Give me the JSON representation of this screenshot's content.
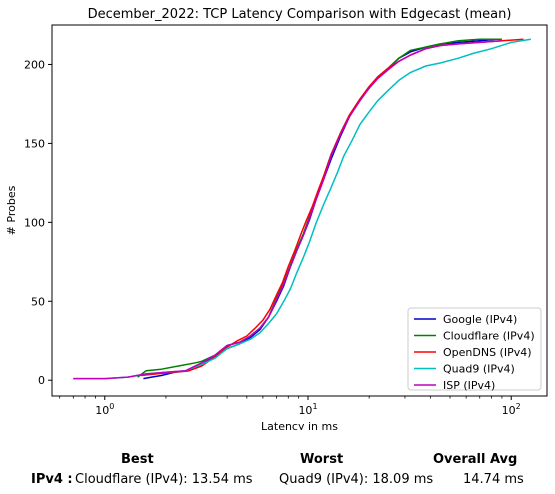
{
  "chart_data": {
    "type": "line",
    "title": "December_2022: TCP Latency Comparison with Edgecast (mean)",
    "xlabel": "Latency in ms",
    "ylabel": "# Probes",
    "x_scale": "log",
    "xlim": [
      0.55,
      150
    ],
    "ylim": [
      -10,
      225
    ],
    "x_ticks": [
      {
        "value": 1,
        "base": "10",
        "exp": "0"
      },
      {
        "value": 10,
        "base": "10",
        "exp": "1"
      },
      {
        "value": 100,
        "base": "10",
        "exp": "2"
      }
    ],
    "y_ticks": [
      0,
      50,
      100,
      150,
      200
    ],
    "legend_position": "lower right",
    "series": [
      {
        "name": "Google (IPv4)",
        "color": "#0000cc",
        "points": [
          [
            1.55,
            1
          ],
          [
            1.7,
            2
          ],
          [
            1.9,
            3
          ],
          [
            2.2,
            5
          ],
          [
            2.6,
            6
          ],
          [
            3.0,
            10
          ],
          [
            3.5,
            15
          ],
          [
            4.0,
            20
          ],
          [
            4.6,
            23
          ],
          [
            5.2,
            27
          ],
          [
            5.8,
            32
          ],
          [
            6.4,
            40
          ],
          [
            7.0,
            50
          ],
          [
            7.6,
            60
          ],
          [
            8.2,
            72
          ],
          [
            8.8,
            82
          ],
          [
            9.5,
            92
          ],
          [
            10.2,
            102
          ],
          [
            11.0,
            115
          ],
          [
            12.0,
            128
          ],
          [
            13.0,
            140
          ],
          [
            14.5,
            155
          ],
          [
            16.0,
            167
          ],
          [
            18.0,
            178
          ],
          [
            20.0,
            185
          ],
          [
            22.0,
            192
          ],
          [
            25.0,
            198
          ],
          [
            28.0,
            204
          ],
          [
            32.0,
            208
          ],
          [
            38.0,
            211
          ],
          [
            45.0,
            213
          ],
          [
            55.0,
            214
          ],
          [
            70.0,
            215
          ],
          [
            85.0,
            216
          ]
        ]
      },
      {
        "name": "Cloudflare (IPv4)",
        "color": "#008000",
        "points": [
          [
            1.45,
            2
          ],
          [
            1.6,
            6
          ],
          [
            1.9,
            7
          ],
          [
            2.3,
            9
          ],
          [
            2.8,
            11
          ],
          [
            3.0,
            12
          ],
          [
            3.5,
            16
          ],
          [
            4.0,
            22
          ],
          [
            4.6,
            24
          ],
          [
            5.2,
            28
          ],
          [
            5.8,
            33
          ],
          [
            6.4,
            40
          ],
          [
            7.0,
            52
          ],
          [
            7.6,
            62
          ],
          [
            8.2,
            73
          ],
          [
            8.8,
            83
          ],
          [
            9.5,
            93
          ],
          [
            10.2,
            104
          ],
          [
            11.0,
            116
          ],
          [
            12.0,
            130
          ],
          [
            13.0,
            143
          ],
          [
            14.5,
            157
          ],
          [
            16.0,
            168
          ],
          [
            18.0,
            178
          ],
          [
            20.0,
            186
          ],
          [
            22.0,
            192
          ],
          [
            25.0,
            198
          ],
          [
            28.0,
            204
          ],
          [
            32.0,
            209
          ],
          [
            38.0,
            211
          ],
          [
            45.0,
            213
          ],
          [
            55.0,
            215
          ],
          [
            70.0,
            216
          ],
          [
            90.0,
            216
          ]
        ]
      },
      {
        "name": "OpenDNS (IPv4)",
        "color": "#ff0000",
        "points": [
          [
            1.5,
            3
          ],
          [
            1.8,
            4
          ],
          [
            2.2,
            5
          ],
          [
            2.6,
            6
          ],
          [
            3.0,
            9
          ],
          [
            3.5,
            15
          ],
          [
            4.0,
            21
          ],
          [
            4.5,
            25
          ],
          [
            5.0,
            28
          ],
          [
            5.5,
            33
          ],
          [
            6.0,
            38
          ],
          [
            6.5,
            45
          ],
          [
            7.0,
            54
          ],
          [
            7.5,
            62
          ],
          [
            8.0,
            72
          ],
          [
            8.6,
            82
          ],
          [
            9.2,
            92
          ],
          [
            9.8,
            101
          ],
          [
            10.5,
            110
          ],
          [
            11.2,
            120
          ],
          [
            12.0,
            130
          ],
          [
            13.0,
            143
          ],
          [
            14.5,
            157
          ],
          [
            16.0,
            168
          ],
          [
            18.0,
            178
          ],
          [
            20.0,
            186
          ],
          [
            22.0,
            192
          ],
          [
            25.0,
            198
          ],
          [
            28.0,
            202
          ],
          [
            32.0,
            206
          ],
          [
            38.0,
            210
          ],
          [
            45.0,
            212
          ],
          [
            55.0,
            213
          ],
          [
            70.0,
            214
          ],
          [
            90.0,
            215
          ],
          [
            115.0,
            216
          ]
        ]
      },
      {
        "name": "Quad9 (IPv4)",
        "color": "#00bfbf",
        "points": [
          [
            0.7,
            1
          ],
          [
            1.0,
            1
          ],
          [
            1.3,
            2
          ],
          [
            1.6,
            4
          ],
          [
            2.0,
            5
          ],
          [
            2.5,
            6
          ],
          [
            3.0,
            10
          ],
          [
            3.5,
            14
          ],
          [
            4.0,
            20
          ],
          [
            4.6,
            23
          ],
          [
            5.2,
            26
          ],
          [
            5.8,
            30
          ],
          [
            6.4,
            36
          ],
          [
            7.0,
            42
          ],
          [
            7.6,
            50
          ],
          [
            8.2,
            58
          ],
          [
            8.8,
            68
          ],
          [
            9.5,
            78
          ],
          [
            10.2,
            88
          ],
          [
            11.0,
            100
          ],
          [
            12.0,
            112
          ],
          [
            13.0,
            122
          ],
          [
            14.0,
            132
          ],
          [
            15.0,
            142
          ],
          [
            16.5,
            152
          ],
          [
            18.0,
            162
          ],
          [
            20.0,
            170
          ],
          [
            22.0,
            177
          ],
          [
            25.0,
            184
          ],
          [
            28.0,
            190
          ],
          [
            32.0,
            195
          ],
          [
            38.0,
            199
          ],
          [
            45.0,
            201
          ],
          [
            55.0,
            204
          ],
          [
            65.0,
            207
          ],
          [
            80.0,
            210
          ],
          [
            100.0,
            214
          ],
          [
            125.0,
            216
          ]
        ]
      },
      {
        "name": "ISP (IPv4)",
        "color": "#bf00bf",
        "points": [
          [
            0.7,
            1
          ],
          [
            1.0,
            1
          ],
          [
            1.3,
            2
          ],
          [
            1.6,
            4
          ],
          [
            2.0,
            5
          ],
          [
            2.5,
            6
          ],
          [
            3.0,
            11
          ],
          [
            3.5,
            16
          ],
          [
            4.0,
            22
          ],
          [
            4.6,
            24
          ],
          [
            5.2,
            28
          ],
          [
            5.8,
            33
          ],
          [
            6.4,
            40
          ],
          [
            7.0,
            51
          ],
          [
            7.6,
            61
          ],
          [
            8.2,
            72
          ],
          [
            8.8,
            82
          ],
          [
            9.5,
            92
          ],
          [
            10.2,
            103
          ],
          [
            11.0,
            115
          ],
          [
            12.0,
            128
          ],
          [
            13.0,
            142
          ],
          [
            14.5,
            156
          ],
          [
            16.0,
            167
          ],
          [
            18.0,
            177
          ],
          [
            20.0,
            185
          ],
          [
            22.0,
            191
          ],
          [
            25.0,
            197
          ],
          [
            28.0,
            202
          ],
          [
            32.0,
            206
          ],
          [
            38.0,
            210
          ],
          [
            45.0,
            212
          ],
          [
            55.0,
            213
          ],
          [
            70.0,
            214
          ],
          [
            90.0,
            215
          ]
        ]
      }
    ]
  },
  "summary": {
    "best_header": "Best",
    "worst_header": "Worst",
    "avg_header": "Overall Avg",
    "row_label": "IPv4 :",
    "best_value": "Cloudflare (IPv4): 13.54 ms",
    "worst_value": "Quad9 (IPv4): 18.09 ms",
    "avg_value": "14.74 ms"
  }
}
